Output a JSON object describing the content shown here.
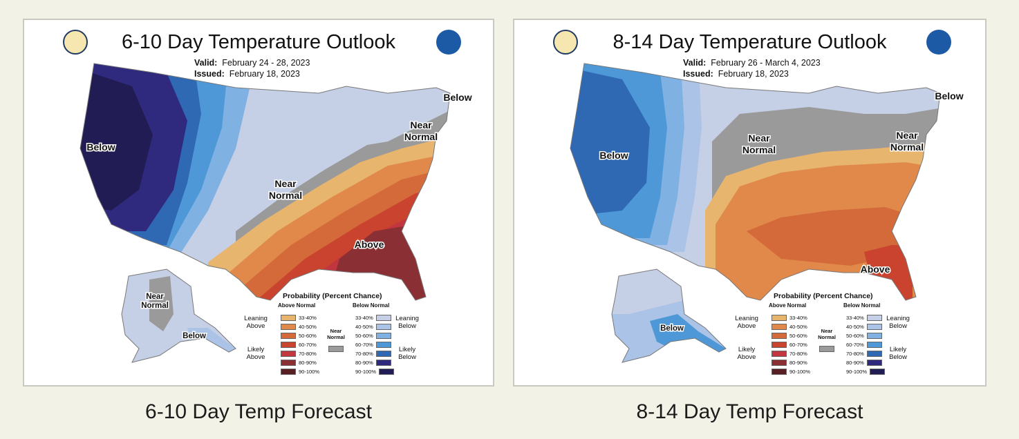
{
  "panels": [
    {
      "title": "6-10 Day Temperature Outlook",
      "valid_label": "Valid:",
      "valid_value": "February 24 - 28, 2023",
      "issued_label": "Issued:",
      "issued_value": "February 18, 2023",
      "caption": "6-10 Day Temp Forecast",
      "regions": {
        "below_west": "Below",
        "below_ne": "Below",
        "near_ne_1": "Near",
        "near_ne_2": "Normal",
        "near_mid_1": "Near",
        "near_mid_2": "Normal",
        "above": "Above",
        "ak_near_1": "Near",
        "ak_near_2": "Normal",
        "ak_below": "Below"
      }
    },
    {
      "title": "8-14 Day Temperature Outlook",
      "valid_label": "Valid:",
      "valid_value": "February 26 - March 4, 2023",
      "issued_label": "Issued:",
      "issued_value": "February 18, 2023",
      "caption": "8-14 Day Temp Forecast",
      "regions": {
        "below_west": "Below",
        "below_ne": "Below",
        "near_ne_1": "Near",
        "near_ne_2": "Normal",
        "near_mid_1": "Near",
        "near_mid_2": "Normal",
        "above": "Above",
        "ak_below": "Below"
      }
    }
  ],
  "legend": {
    "title": "Probability (Percent Chance)",
    "above_header": "Above Normal",
    "below_header": "Below Normal",
    "near_1": "Near",
    "near_2": "Normal",
    "leaning_1": "Leaning",
    "above_word": "Above",
    "below_word": "Below",
    "likely_1": "Likely",
    "ranges": [
      "33-40%",
      "40-50%",
      "50-60%",
      "60-70%",
      "70-80%",
      "80-90%",
      "90-100%"
    ],
    "above_colors": [
      "#e8b56f",
      "#e0894b",
      "#d4693a",
      "#c9432f",
      "#c2363f",
      "#8a2f33",
      "#5a1f24"
    ],
    "below_colors": [
      "#c5cfe6",
      "#aac3e6",
      "#7fb1e3",
      "#4f98d8",
      "#2f68b3",
      "#2f2a7e",
      "#221c55"
    ],
    "near_color": "#9a9a9a"
  }
}
